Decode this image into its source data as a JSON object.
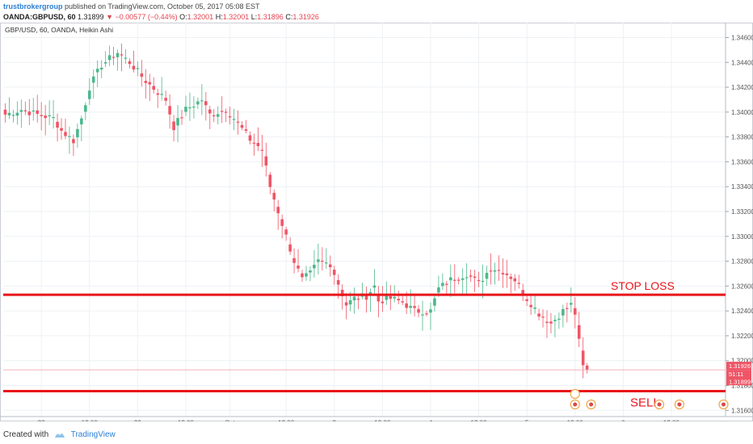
{
  "header": {
    "publisher": "trustbrokergroup",
    "published_text": "published on TradingView.com, October 05, 2017 05:08 EST",
    "symbol_interval": "OANDA:GBPUSD, 60",
    "last_price": "1.31899",
    "change": "−0.00577 (−0.44%)",
    "open_label": "O:",
    "open": "1.32001",
    "high_label": "H:",
    "high": "1.32001",
    "low_label": "L:",
    "low": "1.31896",
    "close_label": "C:",
    "close": "1.31926"
  },
  "footer": {
    "created_with": "Created with",
    "brand": "TradingView"
  },
  "colors": {
    "up": "#4cb88c",
    "down": "#ef5566",
    "level_line": "#e8161b",
    "annotation_text": "#e8161b",
    "grid": "#eef1f5"
  },
  "chart_data": {
    "type": "candlestick",
    "title": "GBP/USD, 60, OANDA, Heikin Ashi",
    "ylim": [
      1.3155,
      1.3472
    ],
    "yticks": [
      1.316,
      1.318,
      1.32,
      1.322,
      1.324,
      1.326,
      1.328,
      1.33,
      1.332,
      1.334,
      1.336,
      1.338,
      1.34,
      1.342,
      1.344,
      1.346
    ],
    "ytick_labels": [
      "1.31600",
      "1.31800",
      "1.32000",
      "1.32200",
      "1.32400",
      "1.32600",
      "1.32800",
      "1.33000",
      "1.33200",
      "1.33400",
      "1.33600",
      "1.33800",
      "1.34000",
      "1.34200",
      "1.34400",
      "1.34600"
    ],
    "n_bars": 180,
    "xtick_labels": [
      {
        "label": "28",
        "bar": 9
      },
      {
        "label": "12:00",
        "bar": 21
      },
      {
        "label": "29",
        "bar": 33
      },
      {
        "label": "12:00",
        "bar": 45
      },
      {
        "label": "Oct",
        "bar": 56
      },
      {
        "label": "12:00",
        "bar": 70
      },
      {
        "label": "3",
        "bar": 82
      },
      {
        "label": "12:00",
        "bar": 94
      },
      {
        "label": "4",
        "bar": 106
      },
      {
        "label": "12:00",
        "bar": 118
      },
      {
        "label": "5",
        "bar": 130
      },
      {
        "label": "12:00",
        "bar": 142
      },
      {
        "label": "6",
        "bar": 154
      },
      {
        "label": "12:00",
        "bar": 166
      }
    ],
    "price_labels": {
      "close": "1.31926",
      "countdown": "51:11",
      "last": "1.31899"
    },
    "levels": [
      {
        "name": "STOP LOSS",
        "price": 1.3253
      },
      {
        "name": "SELL",
        "price": 1.31755
      }
    ],
    "anchors": [
      [
        0,
        1.3398
      ],
      [
        4,
        1.3402
      ],
      [
        8,
        1.3398
      ],
      [
        12,
        1.3395
      ],
      [
        14,
        1.3385
      ],
      [
        17,
        1.3377
      ],
      [
        19,
        1.3395
      ],
      [
        21,
        1.342
      ],
      [
        24,
        1.3438
      ],
      [
        28,
        1.3448
      ],
      [
        31,
        1.344
      ],
      [
        35,
        1.3425
      ],
      [
        40,
        1.341
      ],
      [
        42,
        1.3388
      ],
      [
        45,
        1.3402
      ],
      [
        49,
        1.341
      ],
      [
        51,
        1.3398
      ],
      [
        55,
        1.3402
      ],
      [
        57,
        1.3395
      ],
      [
        61,
        1.3378
      ],
      [
        64,
        1.337
      ],
      [
        66,
        1.334
      ],
      [
        69,
        1.331
      ],
      [
        72,
        1.328
      ],
      [
        74,
        1.3265
      ],
      [
        76,
        1.327
      ],
      [
        78,
        1.328
      ],
      [
        81,
        1.3278
      ],
      [
        83,
        1.3262
      ],
      [
        85,
        1.3245
      ],
      [
        87,
        1.325
      ],
      [
        90,
        1.3252
      ],
      [
        92,
        1.326
      ],
      [
        93,
        1.3248
      ],
      [
        96,
        1.325
      ],
      [
        99,
        1.3247
      ],
      [
        102,
        1.324
      ],
      [
        106,
        1.324
      ],
      [
        108,
        1.3258
      ],
      [
        111,
        1.3265
      ],
      [
        115,
        1.327
      ],
      [
        118,
        1.3262
      ],
      [
        121,
        1.3275
      ],
      [
        124,
        1.3272
      ],
      [
        127,
        1.3265
      ],
      [
        130,
        1.325
      ],
      [
        133,
        1.3238
      ],
      [
        136,
        1.323
      ],
      [
        139,
        1.324
      ],
      [
        141,
        1.3245
      ],
      [
        142,
        1.3238
      ],
      [
        143,
        1.3215
      ],
      [
        144,
        1.3195
      ],
      [
        145,
        1.3192
      ]
    ],
    "last_bar_index": 145
  }
}
